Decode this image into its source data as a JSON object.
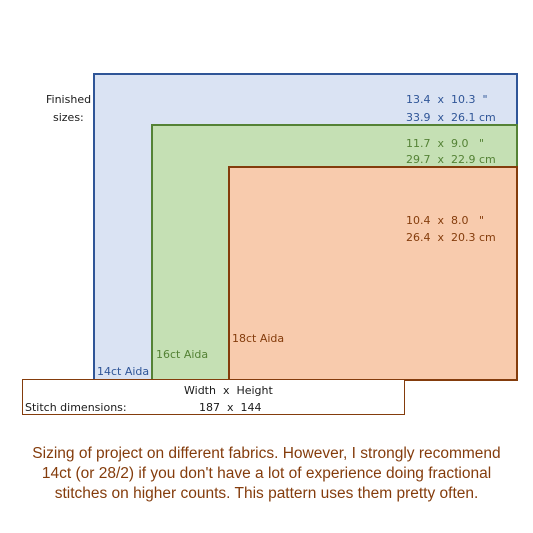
{
  "finished_sizes": {
    "label_line1": "Finished",
    "label_line2": "sizes:"
  },
  "fabrics": [
    {
      "name": "14ct Aida",
      "inches": "13.4  x  10.3  \"",
      "cm": "33.9  x  26.1 cm",
      "fill": "#dae3f3",
      "border": "#2f5597",
      "text_color": "#2f5597"
    },
    {
      "name": "16ct Aida",
      "inches": "11.7  x  9.0   \"",
      "cm": "29.7  x  22.9 cm",
      "fill": "#c5e0b4",
      "border": "#548235",
      "text_color": "#548235"
    },
    {
      "name": "18ct Aida",
      "inches": "10.4  x  8.0   \"",
      "cm": "26.4  x  20.3 cm",
      "fill": "#f8cbad",
      "border": "#843c0c",
      "text_color": "#843c0c"
    }
  ],
  "stitch_table": {
    "header": "Width  x  Height",
    "row_label": "Stitch dimensions:",
    "row_value": "187  x  144",
    "border": "#843c0c"
  },
  "caption": {
    "line1": "Sizing of project on different fabrics. However, I strongly recommend",
    "line2": "14ct (or 28/2) if you don't have a lot of experience doing fractional",
    "line3": "stitches on higher counts. This pattern uses them pretty often.",
    "color": "#843c0c"
  }
}
